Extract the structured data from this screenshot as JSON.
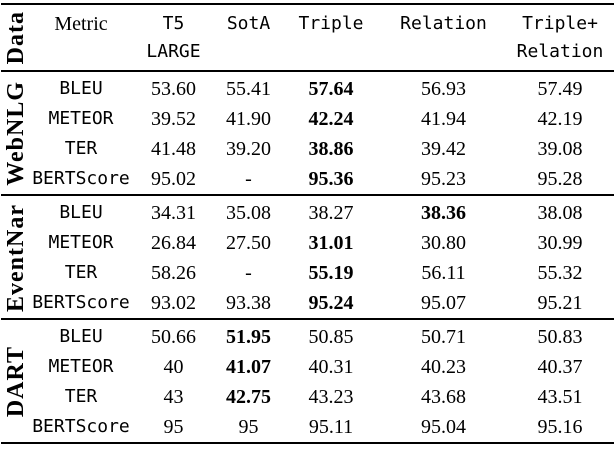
{
  "colors": {
    "text": "#000000",
    "background": "#ffffff",
    "rule": "#000000"
  },
  "table": {
    "header": {
      "data_label": "Data",
      "metric_label": "Metric",
      "columns": [
        {
          "line1": "T5",
          "line2": "LARGE"
        },
        {
          "line1": "SotA",
          "line2": ""
        },
        {
          "line1": "Triple",
          "line2": ""
        },
        {
          "line1": "Relation",
          "line2": ""
        },
        {
          "line1": "Triple+",
          "line2": "Relation"
        }
      ]
    },
    "sections": [
      {
        "name": "WebNLG",
        "rows": [
          {
            "metric": "BLEU",
            "values": [
              "53.60",
              "55.41",
              "57.64",
              "56.93",
              "57.49"
            ]
          },
          {
            "metric": "METEOR",
            "values": [
              "39.52",
              "41.90",
              "42.24",
              "41.94",
              "42.19"
            ]
          },
          {
            "metric": "TER",
            "values": [
              "41.48",
              "39.20",
              "38.86",
              "39.42",
              "39.08"
            ]
          },
          {
            "metric": "BERTScore",
            "values": [
              "95.02",
              "-",
              "95.36",
              "95.23",
              "95.28"
            ]
          }
        ]
      },
      {
        "name": "EventNar",
        "rows": [
          {
            "metric": "BLEU",
            "values": [
              "34.31",
              "35.08",
              "38.27",
              "38.36",
              "38.08"
            ]
          },
          {
            "metric": "METEOR",
            "values": [
              "26.84",
              "27.50",
              "31.01",
              "30.80",
              "30.99"
            ]
          },
          {
            "metric": "TER",
            "values": [
              "58.26",
              "-",
              "55.19",
              "56.11",
              "55.32"
            ]
          },
          {
            "metric": "BERTScore",
            "values": [
              "93.02",
              "93.38",
              "95.24",
              "95.07",
              "95.21"
            ]
          }
        ]
      },
      {
        "name": "DART",
        "rows": [
          {
            "metric": "BLEU",
            "values": [
              "50.66",
              "51.95",
              "50.85",
              "50.71",
              "50.83"
            ]
          },
          {
            "metric": "METEOR",
            "values": [
              "40",
              "41.07",
              "40.31",
              "40.23",
              "40.37"
            ]
          },
          {
            "metric": "TER",
            "values": [
              "43",
              "42.75",
              "43.23",
              "43.68",
              "43.51"
            ]
          },
          {
            "metric": "BERTScore",
            "values": [
              "95",
              "95",
              "95.11",
              "95.04",
              "95.16"
            ]
          }
        ]
      }
    ]
  }
}
